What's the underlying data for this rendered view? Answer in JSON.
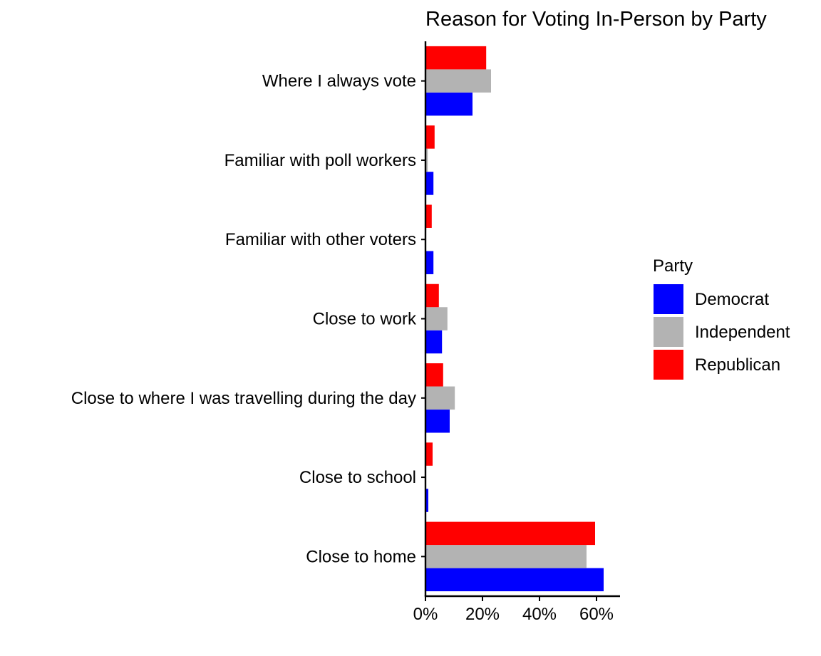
{
  "chart_data": {
    "type": "bar",
    "orientation": "horizontal",
    "title": "Reason for Voting In-Person by Party",
    "xlabel": "",
    "ylabel": "",
    "categories": [
      "Close to home",
      "Close to school",
      "Close to where I was travelling during the day",
      "Close to work",
      "Familiar with other voters",
      "Familiar with poll workers",
      "Where I always vote"
    ],
    "series": [
      {
        "name": "Democrat",
        "color": "#0000ff",
        "values": [
          0.625,
          0.01,
          0.085,
          0.058,
          0.028,
          0.028,
          0.165
        ]
      },
      {
        "name": "Independent",
        "color": "#b3b3b3",
        "values": [
          0.565,
          0.0,
          0.103,
          0.077,
          0.0,
          0.008,
          0.23
        ]
      },
      {
        "name": "Republican",
        "color": "#ff0000",
        "values": [
          0.595,
          0.025,
          0.062,
          0.047,
          0.022,
          0.032,
          0.213
        ]
      }
    ],
    "xlim": [
      0,
      0.68
    ],
    "xticks": [
      0,
      0.2,
      0.4,
      0.6
    ],
    "xtick_labels": [
      "0%",
      "20%",
      "40%",
      "60%"
    ],
    "legend": {
      "title": "Party",
      "position": "right",
      "entries": [
        "Democrat",
        "Independent",
        "Republican"
      ]
    },
    "grid": false
  }
}
